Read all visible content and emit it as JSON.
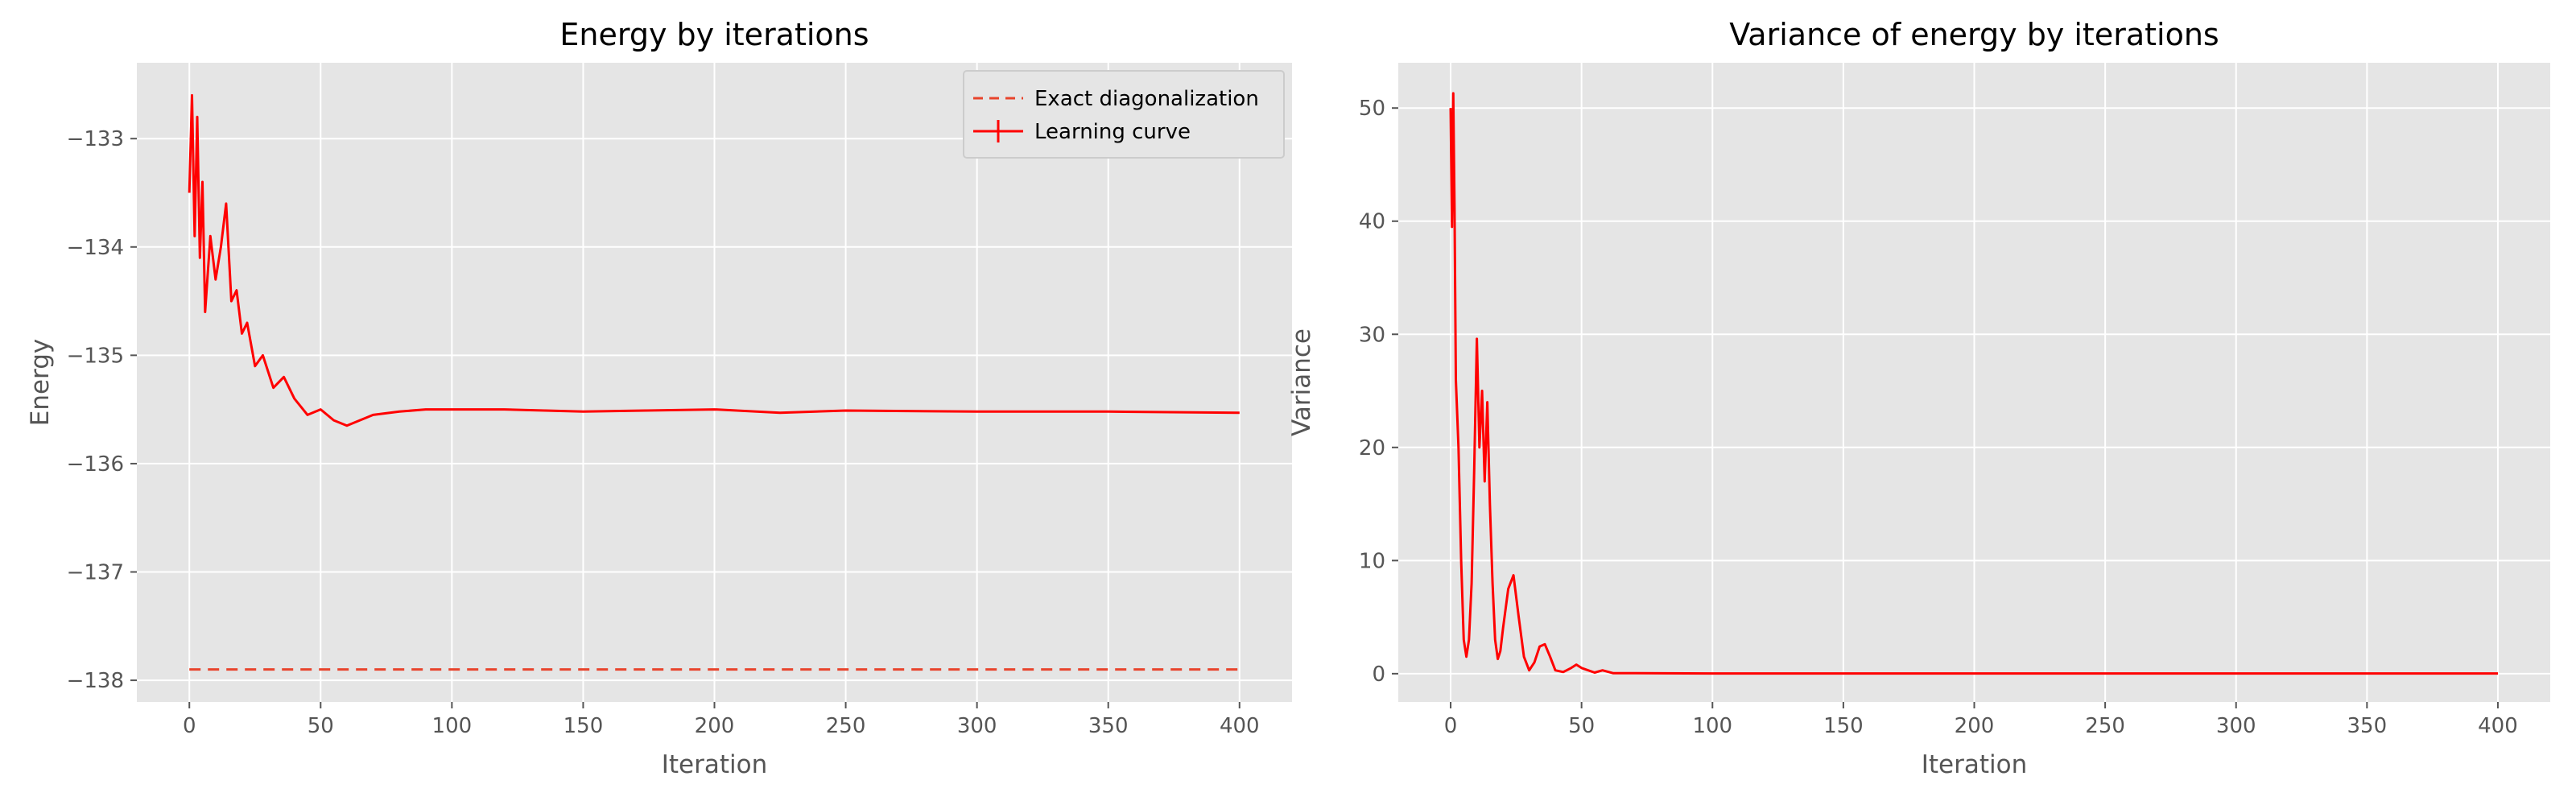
{
  "chart_data": [
    {
      "type": "line",
      "title": "Energy by iterations",
      "xlabel": "Iteration",
      "ylabel": "Energy",
      "xlim": [
        -20,
        420
      ],
      "ylim": [
        -138.2,
        -132.3
      ],
      "xticks": [
        0,
        50,
        100,
        150,
        200,
        250,
        300,
        350,
        400
      ],
      "yticks": [
        -138,
        -137,
        -136,
        -135,
        -134,
        -133
      ],
      "ytick_labels": [
        "−138",
        "−137",
        "−136",
        "−135",
        "−134",
        "−133"
      ],
      "grid": true,
      "legend": "top-right",
      "series": [
        {
          "name": "Exact diagonalization",
          "style": "dashed",
          "color": "#e8442c",
          "x": [
            0,
            400
          ],
          "y": [
            -137.9,
            -137.9
          ]
        },
        {
          "name": "Learning curve",
          "style": "solid",
          "color": "#ff0000",
          "x": [
            0,
            1,
            2,
            3,
            4,
            5,
            6,
            8,
            10,
            12,
            14,
            16,
            18,
            20,
            22,
            25,
            28,
            32,
            36,
            40,
            45,
            50,
            55,
            60,
            70,
            80,
            90,
            100,
            120,
            150,
            200,
            225,
            250,
            300,
            350,
            400
          ],
          "y": [
            -133.5,
            -132.6,
            -133.9,
            -132.8,
            -134.1,
            -133.4,
            -134.6,
            -133.9,
            -134.3,
            -134.0,
            -133.6,
            -134.5,
            -134.4,
            -134.8,
            -134.7,
            -135.1,
            -135.0,
            -135.3,
            -135.2,
            -135.4,
            -135.55,
            -135.5,
            -135.6,
            -135.65,
            -135.55,
            -135.52,
            -135.5,
            -135.5,
            -135.5,
            -135.52,
            -135.5,
            -135.53,
            -135.51,
            -135.52,
            -135.52,
            -135.53
          ]
        }
      ]
    },
    {
      "type": "line",
      "title": "Variance of energy by iterations",
      "xlabel": "Iteration",
      "ylabel": "Variance",
      "xlim": [
        -20,
        420
      ],
      "ylim": [
        -2.5,
        54
      ],
      "xticks": [
        0,
        50,
        100,
        150,
        200,
        250,
        300,
        350,
        400
      ],
      "yticks": [
        0,
        10,
        20,
        30,
        40,
        50
      ],
      "grid": true,
      "series": [
        {
          "color": "#ff0000",
          "x": [
            0,
            0.5,
            1,
            1.5,
            2,
            3,
            4,
            5,
            6,
            7,
            8,
            9,
            10,
            11,
            12,
            13,
            14,
            15,
            16,
            17,
            18,
            19,
            20,
            22,
            24,
            26,
            28,
            30,
            32,
            34,
            36,
            38,
            40,
            43,
            46,
            48,
            50,
            55,
            58,
            62,
            70,
            80,
            100,
            150,
            200,
            300,
            400
          ],
          "y": [
            50,
            39.5,
            51.3,
            41,
            26,
            20,
            10,
            3,
            1.5,
            3,
            8,
            18,
            29.6,
            20,
            25,
            17,
            24,
            15,
            8,
            3,
            1.3,
            2,
            4,
            7.5,
            8.7,
            5,
            1.5,
            0.3,
            1,
            2.4,
            2.6,
            1.5,
            0.3,
            0.15,
            0.5,
            0.8,
            0.5,
            0.1,
            0.3,
            0.05,
            0.05,
            0.03,
            0.02,
            0.02,
            0.02,
            0.02,
            0.02
          ]
        }
      ]
    }
  ]
}
